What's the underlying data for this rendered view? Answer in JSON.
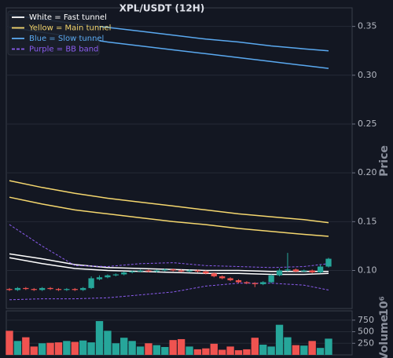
{
  "chart_data": {
    "type": "candlestick",
    "title": "XPL/USDT (12H)",
    "ylabel": "Price",
    "ylim": [
      0.061,
      0.369
    ],
    "yticks": [
      {
        "value": 0.1,
        "label": "0.10"
      },
      {
        "value": 0.15,
        "label": "0.15"
      },
      {
        "value": 0.2,
        "label": "0.20"
      },
      {
        "value": 0.25,
        "label": "0.25"
      },
      {
        "value": 0.3,
        "label": "0.30"
      },
      {
        "value": 0.35,
        "label": "0.35"
      }
    ],
    "grid": true,
    "up_color": "#26a69a",
    "down_color": "#ef5350",
    "legend": "upper left",
    "open": [
      0.081,
      0.08,
      0.082,
      0.081,
      0.08,
      0.082,
      0.081,
      0.08,
      0.081,
      0.08,
      0.082,
      0.091,
      0.093,
      0.095,
      0.096,
      0.098,
      0.099,
      0.1,
      0.099,
      0.1,
      0.101,
      0.1,
      0.099,
      0.1,
      0.099,
      0.097,
      0.094,
      0.092,
      0.09,
      0.088,
      0.087,
      0.086,
      0.088,
      0.095,
      0.1,
      0.101,
      0.099,
      0.1,
      0.098,
      0.104
    ],
    "high": [
      0.082,
      0.083,
      0.083,
      0.082,
      0.083,
      0.083,
      0.082,
      0.082,
      0.082,
      0.083,
      0.094,
      0.095,
      0.096,
      0.097,
      0.099,
      0.1,
      0.101,
      0.101,
      0.101,
      0.102,
      0.102,
      0.101,
      0.101,
      0.101,
      0.1,
      0.098,
      0.095,
      0.093,
      0.091,
      0.089,
      0.088,
      0.089,
      0.096,
      0.102,
      0.118,
      0.102,
      0.101,
      0.101,
      0.106,
      0.113
    ],
    "low": [
      0.079,
      0.079,
      0.08,
      0.079,
      0.079,
      0.08,
      0.079,
      0.079,
      0.079,
      0.079,
      0.081,
      0.09,
      0.092,
      0.094,
      0.095,
      0.097,
      0.098,
      0.098,
      0.098,
      0.099,
      0.099,
      0.098,
      0.098,
      0.098,
      0.096,
      0.093,
      0.091,
      0.089,
      0.087,
      0.086,
      0.083,
      0.085,
      0.087,
      0.094,
      0.099,
      0.098,
      0.098,
      0.097,
      0.097,
      0.103
    ],
    "close": [
      0.08,
      0.082,
      0.081,
      0.08,
      0.082,
      0.081,
      0.08,
      0.081,
      0.08,
      0.082,
      0.092,
      0.093,
      0.095,
      0.096,
      0.098,
      0.099,
      0.1,
      0.099,
      0.1,
      0.101,
      0.1,
      0.099,
      0.1,
      0.099,
      0.097,
      0.094,
      0.092,
      0.09,
      0.088,
      0.087,
      0.086,
      0.088,
      0.095,
      0.1,
      0.101,
      0.099,
      0.1,
      0.098,
      0.104,
      0.112
    ],
    "overlay_x": [
      0,
      4,
      8,
      12,
      16,
      20,
      24,
      28,
      32,
      36,
      39
    ],
    "overlays": [
      {
        "name": "White = Fast tunnel",
        "color": "#ffffff",
        "dashed": false,
        "upper": [
          0.117,
          0.112,
          0.106,
          0.103,
          0.102,
          0.101,
          0.1,
          0.1,
          0.099,
          0.099,
          0.099
        ],
        "lower": [
          0.113,
          0.107,
          0.102,
          0.1,
          0.099,
          0.098,
          0.097,
          0.097,
          0.096,
          0.096,
          0.097
        ]
      },
      {
        "name": "Yellow = Main tunnel",
        "color": "#f5d76e",
        "dashed": false,
        "upper": [
          0.192,
          0.185,
          0.179,
          0.174,
          0.17,
          0.166,
          0.162,
          0.158,
          0.155,
          0.152,
          0.149
        ],
        "lower": [
          0.175,
          0.168,
          0.162,
          0.158,
          0.154,
          0.15,
          0.147,
          0.143,
          0.14,
          0.137,
          0.135
        ]
      },
      {
        "name": "Blue = Slow tunnel",
        "color": "#5aa9f0",
        "dashed": false,
        "upper": [
          0.362,
          0.357,
          0.353,
          0.349,
          0.345,
          0.341,
          0.337,
          0.334,
          0.33,
          0.327,
          0.325
        ],
        "lower": [
          0.349,
          0.344,
          0.339,
          0.334,
          0.33,
          0.326,
          0.322,
          0.318,
          0.314,
          0.31,
          0.307
        ]
      },
      {
        "name": "Purple = BB band",
        "color": "#8c5cf0",
        "dashed": true,
        "upper": [
          0.147,
          0.125,
          0.105,
          0.104,
          0.107,
          0.108,
          0.105,
          0.104,
          0.103,
          0.104,
          0.107
        ],
        "lower": [
          0.07,
          0.071,
          0.071,
          0.072,
          0.075,
          0.078,
          0.084,
          0.087,
          0.087,
          0.085,
          0.08
        ]
      }
    ],
    "volume": {
      "ylabel": "Volume",
      "offset_text": "10⁶",
      "ylim": [
        0,
        950
      ],
      "yticks": [
        250,
        500,
        750
      ],
      "values": [
        520,
        300,
        380,
        180,
        250,
        260,
        270,
        300,
        280,
        310,
        270,
        730,
        520,
        250,
        370,
        300,
        180,
        250,
        210,
        170,
        320,
        340,
        180,
        120,
        140,
        240,
        110,
        180,
        100,
        120,
        370,
        220,
        180,
        650,
        380,
        210,
        200,
        300,
        150,
        350
      ]
    }
  }
}
